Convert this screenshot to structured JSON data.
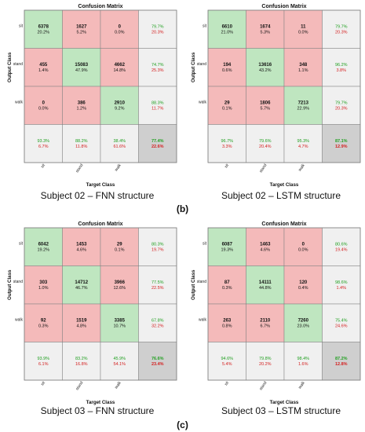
{
  "colors": {
    "correct_cell": "#bfe6c0",
    "wrong_cell": "#f4baba",
    "summary_cell": "#f0f0f0",
    "total_cell": "#cfcfcf",
    "good_text": "#22a022",
    "bad_text": "#d42020",
    "grid": "#808080"
  },
  "figure_labels": [
    "(b)",
    "(c)"
  ],
  "chart_data": [
    {
      "type": "heatmap",
      "title": "Confusion Matrix",
      "caption": "Subject 02 – FNN structure",
      "xlabel": "Target Class",
      "ylabel": "Output Class",
      "classes": [
        "sit",
        "stand",
        "walk"
      ],
      "matrix": [
        [
          [
            "6378",
            "20.2%"
          ],
          [
            "1627",
            "5.2%"
          ],
          [
            "0",
            "0.0%"
          ]
        ],
        [
          [
            "455",
            "1.4%"
          ],
          [
            "15083",
            "47.9%"
          ],
          [
            "4662",
            "14.8%"
          ]
        ],
        [
          [
            "0",
            "0.0%"
          ],
          [
            "386",
            "1.2%"
          ],
          [
            "2910",
            "9.2%"
          ]
        ]
      ],
      "row_summary": [
        [
          "79.7%",
          "20.3%"
        ],
        [
          "74.7%",
          "25.3%"
        ],
        [
          "88.3%",
          "11.7%"
        ]
      ],
      "col_summary": [
        [
          "93.3%",
          "6.7%"
        ],
        [
          "88.2%",
          "11.8%"
        ],
        [
          "38.4%",
          "61.6%"
        ]
      ],
      "total": [
        "77.4%",
        "22.6%"
      ]
    },
    {
      "type": "heatmap",
      "title": "Confusion Matrix",
      "caption": "Subject 02 – LSTM structure",
      "xlabel": "Target Class",
      "ylabel": "Output Class",
      "classes": [
        "sit",
        "stand",
        "walk"
      ],
      "matrix": [
        [
          [
            "6610",
            "21.0%"
          ],
          [
            "1674",
            "5.3%"
          ],
          [
            "11",
            "0.0%"
          ]
        ],
        [
          [
            "194",
            "0.6%"
          ],
          [
            "13616",
            "43.2%"
          ],
          [
            "348",
            "1.1%"
          ]
        ],
        [
          [
            "29",
            "0.1%"
          ],
          [
            "1806",
            "5.7%"
          ],
          [
            "7213",
            "22.9%"
          ]
        ]
      ],
      "row_summary": [
        [
          "79.7%",
          "20.3%"
        ],
        [
          "96.2%",
          "3.8%"
        ],
        [
          "79.7%",
          "20.3%"
        ]
      ],
      "col_summary": [
        [
          "96.7%",
          "3.3%"
        ],
        [
          "79.6%",
          "20.4%"
        ],
        [
          "95.3%",
          "4.7%"
        ]
      ],
      "total": [
        "87.1%",
        "12.9%"
      ]
    },
    {
      "type": "heatmap",
      "title": "Confusion Matrix",
      "caption": "Subject 03 – FNN structure",
      "xlabel": "Target Class",
      "ylabel": "Output Class",
      "classes": [
        "sit",
        "stand",
        "walk"
      ],
      "matrix": [
        [
          [
            "6042",
            "19.2%"
          ],
          [
            "1453",
            "4.6%"
          ],
          [
            "29",
            "0.1%"
          ]
        ],
        [
          [
            "303",
            "1.0%"
          ],
          [
            "14712",
            "46.7%"
          ],
          [
            "3966",
            "12.6%"
          ]
        ],
        [
          [
            "92",
            "0.3%"
          ],
          [
            "1519",
            "4.8%"
          ],
          [
            "3385",
            "10.7%"
          ]
        ]
      ],
      "row_summary": [
        [
          "80.3%",
          "19.7%"
        ],
        [
          "77.5%",
          "22.5%"
        ],
        [
          "67.8%",
          "32.2%"
        ]
      ],
      "col_summary": [
        [
          "93.9%",
          "6.1%"
        ],
        [
          "83.2%",
          "16.8%"
        ],
        [
          "45.9%",
          "54.1%"
        ]
      ],
      "total": [
        "76.6%",
        "23.4%"
      ]
    },
    {
      "type": "heatmap",
      "title": "Confusion Matrix",
      "caption": "Subject 03 – LSTM structure",
      "xlabel": "Target Class",
      "ylabel": "Output Class",
      "classes": [
        "sit",
        "stand",
        "walk"
      ],
      "matrix": [
        [
          [
            "6087",
            "19.3%"
          ],
          [
            "1463",
            "4.6%"
          ],
          [
            "0",
            "0.0%"
          ]
        ],
        [
          [
            "87",
            "0.3%"
          ],
          [
            "14111",
            "44.8%"
          ],
          [
            "120",
            "0.4%"
          ]
        ],
        [
          [
            "263",
            "0.8%"
          ],
          [
            "2110",
            "6.7%"
          ],
          [
            "7260",
            "23.0%"
          ]
        ]
      ],
      "row_summary": [
        [
          "80.6%",
          "19.4%"
        ],
        [
          "98.6%",
          "1.4%"
        ],
        [
          "75.4%",
          "24.6%"
        ]
      ],
      "col_summary": [
        [
          "94.6%",
          "5.4%"
        ],
        [
          "79.8%",
          "20.2%"
        ],
        [
          "98.4%",
          "1.6%"
        ]
      ],
      "total": [
        "87.2%",
        "12.8%"
      ]
    }
  ]
}
